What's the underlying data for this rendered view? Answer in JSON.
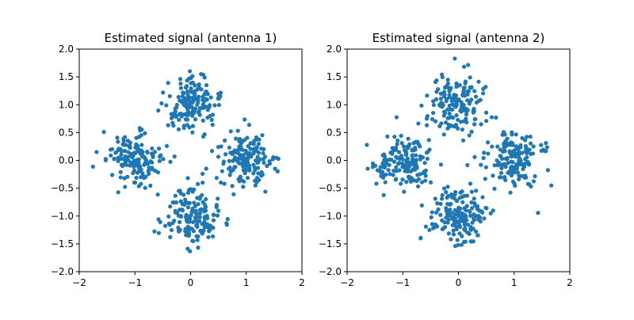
{
  "chart_data": [
    {
      "type": "scatter",
      "title": "Estimated signal (antenna 1)",
      "xlabel": "",
      "ylabel": "",
      "xlim": [
        -2,
        2
      ],
      "ylim": [
        -2,
        2
      ],
      "xticks": [
        -2,
        -1,
        0,
        1,
        2
      ],
      "yticks": [
        -2.0,
        -1.5,
        -1.0,
        -0.5,
        0.0,
        0.5,
        1.0,
        1.5,
        2.0
      ],
      "xtick_labels": [
        "−2",
        "−1",
        "0",
        "1",
        "2"
      ],
      "ytick_labels": [
        "−2.0",
        "−1.5",
        "−1.0",
        "−0.5",
        "0.0",
        "0.5",
        "1.0",
        "1.5",
        "2.0"
      ],
      "grid": false,
      "color": "#1f77b4",
      "clusters": [
        {
          "x": 0.0,
          "y": 1.0,
          "count": 160
        },
        {
          "x": 0.0,
          "y": -1.0,
          "count": 160
        },
        {
          "x": 1.0,
          "y": 0.0,
          "count": 160
        },
        {
          "x": -1.0,
          "y": 0.0,
          "count": 160
        }
      ],
      "point_spread": 0.25
    },
    {
      "type": "scatter",
      "title": "Estimated signal (antenna 2)",
      "xlabel": "",
      "ylabel": "",
      "xlim": [
        -2,
        2
      ],
      "ylim": [
        -2,
        2
      ],
      "xticks": [
        -2,
        -1,
        0,
        1,
        2
      ],
      "yticks": [
        -2.0,
        -1.5,
        -1.0,
        -0.5,
        0.0,
        0.5,
        1.0,
        1.5,
        2.0
      ],
      "xtick_labels": [
        "−2",
        "−1",
        "0",
        "1",
        "2"
      ],
      "ytick_labels": [
        "−2.0",
        "−1.5",
        "−1.0",
        "−0.5",
        "0.0",
        "0.5",
        "1.0",
        "1.5",
        "2.0"
      ],
      "grid": false,
      "color": "#1f77b4",
      "clusters": [
        {
          "x": 0.0,
          "y": 1.0,
          "count": 160
        },
        {
          "x": 0.0,
          "y": -1.0,
          "count": 160
        },
        {
          "x": 1.0,
          "y": 0.0,
          "count": 160
        },
        {
          "x": -1.0,
          "y": 0.0,
          "count": 160
        }
      ],
      "point_spread": 0.25
    }
  ]
}
